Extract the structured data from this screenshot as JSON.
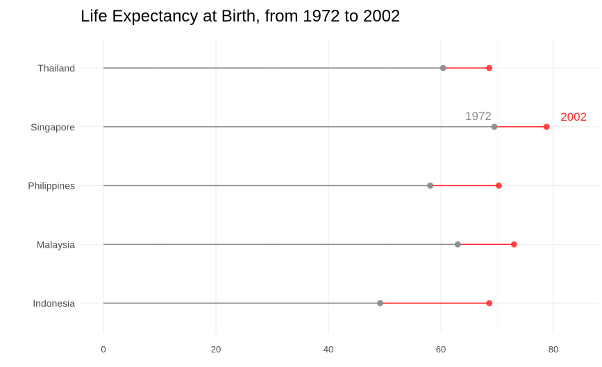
{
  "chart_data": {
    "type": "dumbbell",
    "title": "Life Expectancy at Birth, from 1972 to 2002",
    "xlabel": "",
    "ylabel": "",
    "xlim": [
      0,
      88
    ],
    "x_ticks": [
      0,
      20,
      40,
      60,
      80
    ],
    "grid": true,
    "legend": "none",
    "categories": [
      "Indonesia",
      "Malaysia",
      "Philippines",
      "Singapore",
      "Thailand"
    ],
    "series": [
      {
        "name": "1972",
        "color": "#8c8c8c",
        "values": [
          49.2,
          63.0,
          58.1,
          69.5,
          60.4
        ]
      },
      {
        "name": "2002",
        "color": "#ff2a2a",
        "values": [
          68.6,
          73.0,
          70.3,
          78.8,
          68.6
        ]
      }
    ],
    "annotations": [
      {
        "text": "1972",
        "color": "#8c8c8c",
        "category": "Singapore",
        "series": "1972"
      },
      {
        "text": "2002",
        "color": "#ff2a2a",
        "category": "Singapore",
        "series": "2002"
      }
    ]
  }
}
